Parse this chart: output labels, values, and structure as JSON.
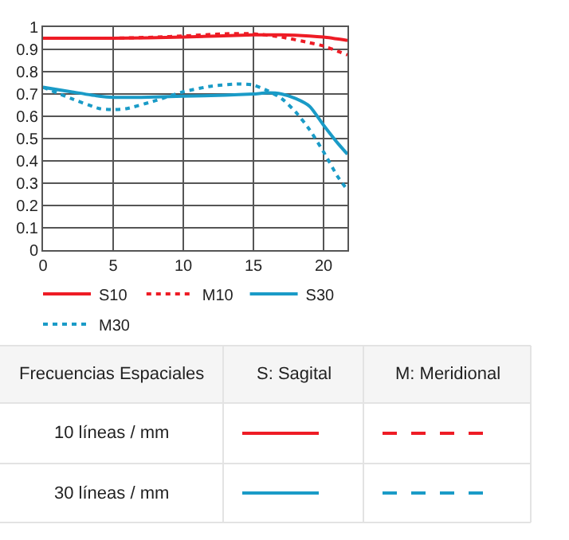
{
  "chart_data": {
    "type": "line",
    "xlim": [
      0,
      21.7
    ],
    "xticks": [
      0,
      5,
      10,
      15,
      20
    ],
    "ylim": [
      0,
      1
    ],
    "yticks": [
      0,
      0.1,
      0.2,
      0.3,
      0.4,
      0.5,
      0.6,
      0.7,
      0.8,
      0.9,
      1
    ],
    "grid": true,
    "legend": "bottom",
    "marker": "none",
    "series": [
      {
        "name": "S10",
        "color": "#ee1c25",
        "line_style": "solid",
        "x": [
          0,
          5,
          10,
          15,
          17,
          19,
          20,
          21.7
        ],
        "values": [
          0.95,
          0.95,
          0.955,
          0.965,
          0.965,
          0.96,
          0.955,
          0.94
        ]
      },
      {
        "name": "M10",
        "color": "#ee1c25",
        "line_style": "dotted",
        "x": [
          0,
          5,
          8,
          10,
          13,
          15,
          17,
          19,
          20,
          21.7
        ],
        "values": [
          0.95,
          0.95,
          0.955,
          0.96,
          0.97,
          0.97,
          0.955,
          0.93,
          0.915,
          0.875
        ]
      },
      {
        "name": "S30",
        "color": "#1a9bc7",
        "line_style": "solid",
        "x": [
          0,
          2,
          4,
          5,
          7,
          10,
          13,
          15,
          16,
          17,
          18,
          19,
          20,
          21,
          21.7
        ],
        "values": [
          0.73,
          0.71,
          0.69,
          0.685,
          0.685,
          0.69,
          0.695,
          0.7,
          0.705,
          0.7,
          0.68,
          0.645,
          0.56,
          0.48,
          0.43
        ]
      },
      {
        "name": "M30",
        "color": "#1a9bc7",
        "line_style": "dotted",
        "x": [
          0,
          2,
          4,
          5,
          6,
          8,
          10,
          12,
          14,
          15,
          16,
          17,
          18,
          19,
          20,
          21,
          21.7
        ],
        "values": [
          0.73,
          0.68,
          0.635,
          0.63,
          0.635,
          0.67,
          0.71,
          0.735,
          0.745,
          0.74,
          0.715,
          0.68,
          0.62,
          0.54,
          0.44,
          0.33,
          0.27
        ]
      }
    ],
    "annotations": [
      "Frecuencias Espaciales",
      "S: Sagital",
      "M: Meridional",
      "10 líneas / mm",
      "30 líneas / mm"
    ]
  }
}
